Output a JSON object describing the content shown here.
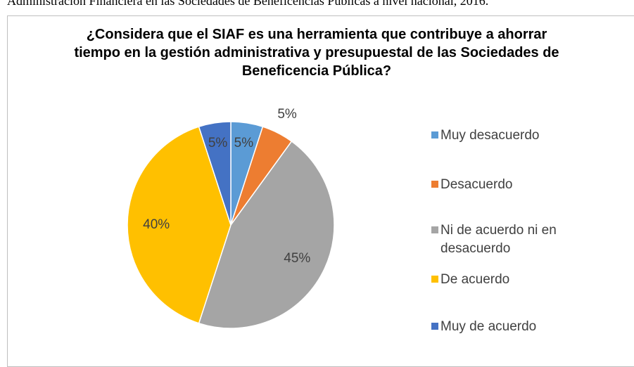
{
  "caption": "Administración Financiera en las Sociedades de Beneficencias Públicas a nivel nacional, 2016.",
  "chart_data": {
    "type": "pie",
    "title": "¿Considera que el SIAF es una herramienta que contribuye a ahorrar tiempo en la gestión administrativa y presupuestal de las Sociedades de Beneficencia Pública?",
    "categories": [
      "Muy desacuerdo",
      "Desacuerdo",
      "Ni de acuerdo ni en desacuerdo",
      "De acuerdo",
      "Muy de acuerdo"
    ],
    "values": [
      5,
      5,
      45,
      40,
      5
    ],
    "value_labels": [
      "5%",
      "5%",
      "45%",
      "40%",
      "5%"
    ],
    "colors": [
      "#5b9bd5",
      "#ed7d31",
      "#a5a5a5",
      "#ffc000",
      "#4472c4"
    ],
    "legend": "right"
  }
}
